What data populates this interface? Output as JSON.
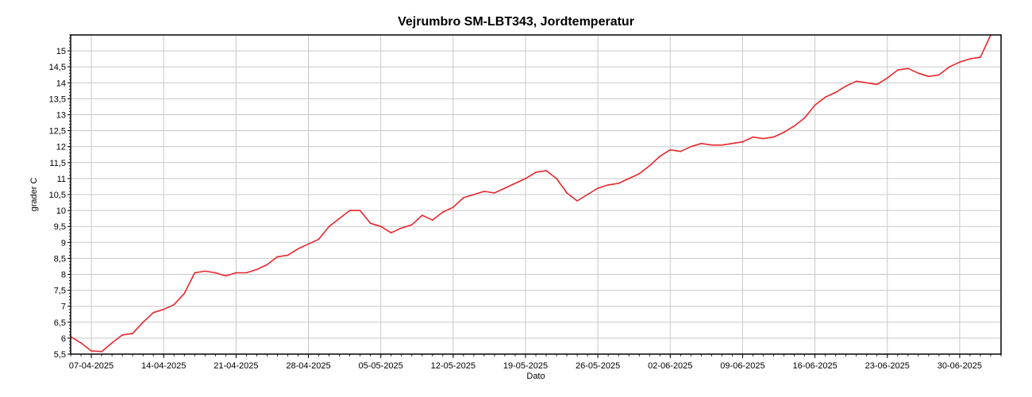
{
  "chart_data": {
    "type": "line",
    "title": "Vejrumbro SM-LBT343, Jordtemperatur",
    "xlabel": "Dato",
    "ylabel": "grader C",
    "x_ticks": [
      "07-04-2025",
      "14-04-2025",
      "21-04-2025",
      "28-04-2025",
      "05-05-2025",
      "12-05-2025",
      "19-05-2025",
      "26-05-2025",
      "02-06-2025",
      "09-06-2025",
      "16-06-2025",
      "23-06-2025",
      "30-06-2025"
    ],
    "y_ticks": [
      "5,5",
      "6",
      "6,5",
      "7",
      "7,5",
      "8",
      "8,5",
      "9",
      "9,5",
      "10",
      "10,5",
      "11",
      "11,5",
      "12",
      "12,5",
      "13",
      "13,5",
      "14",
      "14,5",
      "15"
    ],
    "ylim": [
      5.5,
      15.5
    ],
    "xlim": [
      "2025-04-05",
      "2025-07-04"
    ],
    "grid": true,
    "line_color": "#e8262d",
    "series": [
      {
        "x": [
          "2025-04-05",
          "2025-04-06",
          "2025-04-07",
          "2025-04-08",
          "2025-04-09",
          "2025-04-10",
          "2025-04-11",
          "2025-04-12",
          "2025-04-13",
          "2025-04-14",
          "2025-04-15",
          "2025-04-16",
          "2025-04-17",
          "2025-04-18",
          "2025-04-19",
          "2025-04-20",
          "2025-04-21",
          "2025-04-22",
          "2025-04-23",
          "2025-04-24",
          "2025-04-25",
          "2025-04-26",
          "2025-04-27",
          "2025-04-28",
          "2025-04-29",
          "2025-04-30",
          "2025-05-01",
          "2025-05-02",
          "2025-05-03",
          "2025-05-04",
          "2025-05-05",
          "2025-05-06",
          "2025-05-07",
          "2025-05-08",
          "2025-05-09",
          "2025-05-10",
          "2025-05-11",
          "2025-05-12",
          "2025-05-13",
          "2025-05-14",
          "2025-05-15",
          "2025-05-16",
          "2025-05-17",
          "2025-05-18",
          "2025-05-19",
          "2025-05-20",
          "2025-05-21",
          "2025-05-22",
          "2025-05-23",
          "2025-05-24",
          "2025-05-25",
          "2025-05-26",
          "2025-05-27",
          "2025-05-28",
          "2025-05-29",
          "2025-05-30",
          "2025-05-31",
          "2025-06-01",
          "2025-06-02",
          "2025-06-03",
          "2025-06-04",
          "2025-06-05",
          "2025-06-06",
          "2025-06-07",
          "2025-06-08",
          "2025-06-09",
          "2025-06-10",
          "2025-06-11",
          "2025-06-12",
          "2025-06-13",
          "2025-06-14",
          "2025-06-15",
          "2025-06-16",
          "2025-06-17",
          "2025-06-18",
          "2025-06-19",
          "2025-06-20",
          "2025-06-21",
          "2025-06-22",
          "2025-06-23",
          "2025-06-24",
          "2025-06-25",
          "2025-06-26",
          "2025-06-27",
          "2025-06-28",
          "2025-06-29",
          "2025-06-30",
          "2025-07-01",
          "2025-07-02",
          "2025-07-03"
        ],
        "y": [
          6.05,
          5.85,
          5.6,
          5.58,
          5.85,
          6.1,
          6.15,
          6.5,
          6.8,
          6.9,
          7.05,
          7.4,
          8.05,
          8.1,
          8.05,
          7.95,
          8.05,
          8.05,
          8.15,
          8.3,
          8.55,
          8.6,
          8.8,
          8.95,
          9.1,
          9.5,
          9.75,
          10.0,
          10.0,
          9.6,
          9.5,
          9.3,
          9.45,
          9.55,
          9.85,
          9.7,
          9.95,
          10.1,
          10.4,
          10.5,
          10.6,
          10.55,
          10.7,
          10.85,
          11.0,
          11.2,
          11.25,
          11.0,
          10.55,
          10.3,
          10.5,
          10.7,
          10.8,
          10.85,
          11.0,
          11.15,
          11.4,
          11.7,
          11.9,
          11.85,
          12.0,
          12.1,
          12.05,
          12.05,
          12.1,
          12.15,
          12.3,
          12.25,
          12.3,
          12.45,
          12.65,
          12.9,
          13.3,
          13.55,
          13.7,
          13.9,
          14.05,
          14.0,
          13.95,
          14.15,
          14.4,
          14.45,
          14.3,
          14.2,
          14.25,
          14.5,
          14.65,
          14.75,
          14.8,
          15.5
        ]
      }
    ]
  }
}
